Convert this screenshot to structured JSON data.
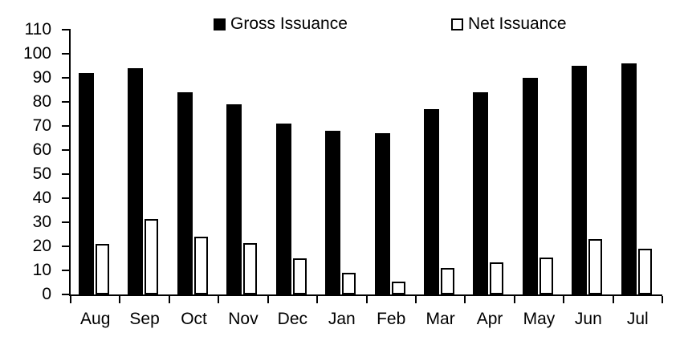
{
  "chart_data": {
    "type": "bar",
    "title": "",
    "xlabel": "",
    "ylabel": "",
    "categories": [
      "Aug",
      "Sep",
      "Oct",
      "Nov",
      "Dec",
      "Jan",
      "Feb",
      "Mar",
      "Apr",
      "May",
      "Jun",
      "Jul"
    ],
    "series": [
      {
        "name": "Gross Issuance",
        "style": "solid",
        "color": "#000000",
        "values": [
          92,
          94,
          84,
          79,
          71,
          68,
          67,
          77,
          84,
          90,
          95,
          96
        ]
      },
      {
        "name": "Net Issuance",
        "style": "outline",
        "color": "#ffffff",
        "border_color": "#000000",
        "values": [
          21,
          31.5,
          24,
          21.5,
          15,
          9,
          5.5,
          11,
          13.5,
          15.5,
          23,
          19
        ]
      }
    ],
    "ylim": [
      0,
      110
    ],
    "yticks": [
      0,
      10,
      20,
      30,
      40,
      50,
      60,
      70,
      80,
      90,
      100,
      110
    ],
    "grid": false,
    "legend_position": "top",
    "axis_color": "#000000",
    "background_color": "#ffffff"
  }
}
